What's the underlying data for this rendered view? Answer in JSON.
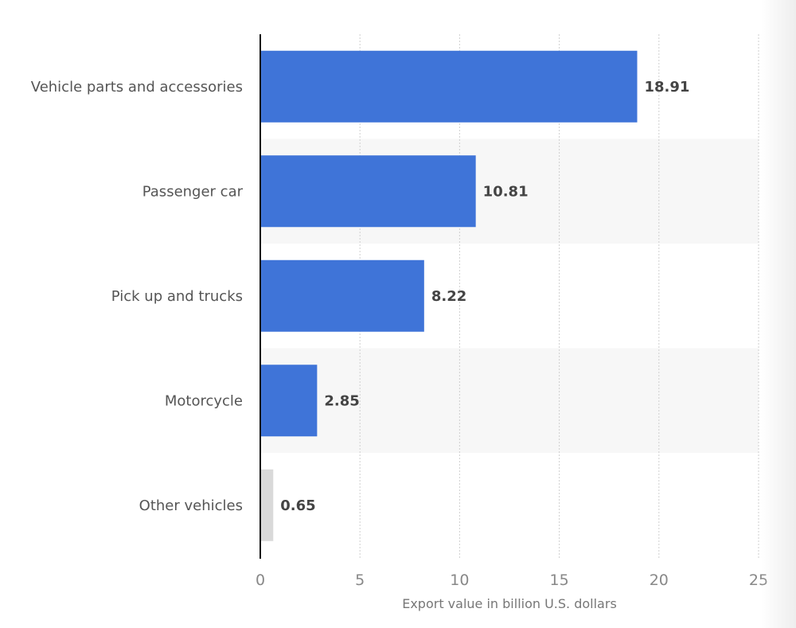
{
  "chart_data": {
    "type": "bar",
    "orientation": "horizontal",
    "categories": [
      "Vehicle parts and accessories",
      "Passenger car",
      "Pick up and trucks",
      "Motorcycle",
      "Other vehicles"
    ],
    "values": [
      18.91,
      10.81,
      8.22,
      2.85,
      0.65
    ],
    "value_labels": [
      "18.91",
      "10.81",
      "8.22",
      "2.85",
      "0.65"
    ],
    "xlabel": "Export value in billion U.S. dollars",
    "xlim": [
      0,
      25
    ],
    "xticks": [
      0,
      5,
      10,
      15,
      20,
      25
    ],
    "grid": true,
    "colors": {
      "bar": "#3f74d8",
      "highlight_bar": "#d9d9d9",
      "band": "#f7f7f7",
      "grid": "#cfcfcf",
      "axis": "#111111"
    },
    "bar_colors": [
      "#3f74d8",
      "#3f74d8",
      "#3f74d8",
      "#3f74d8",
      "#d9d9d9"
    ]
  }
}
